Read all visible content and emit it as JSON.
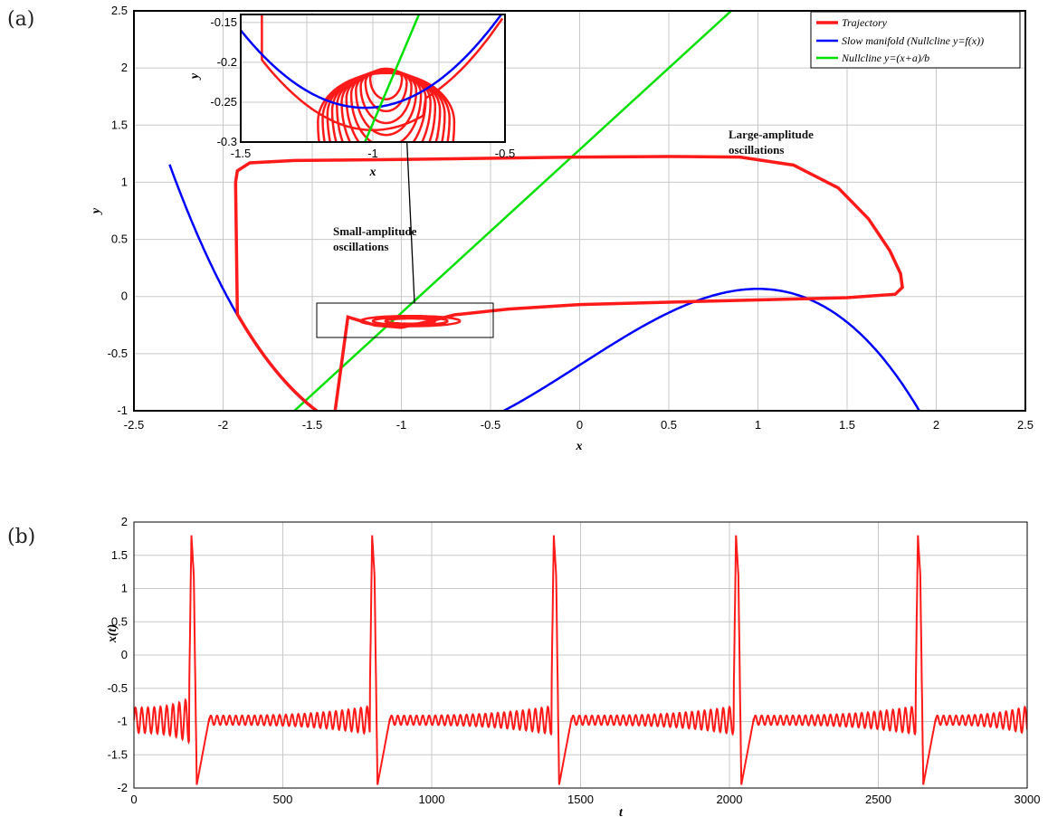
{
  "panel_labels": {
    "a": "(a)",
    "b": "(b)"
  },
  "colors": {
    "trajectory": "#ff1a1a",
    "manifold": "#0000ff",
    "nullcline": "#00e000",
    "grid": "#c8c8c8"
  },
  "chart_data": [
    {
      "id": "phase-plane",
      "type": "line",
      "xlabel": "x",
      "ylabel": "y",
      "xlim": [
        -2.5,
        2.5
      ],
      "ylim": [
        -1,
        2.5
      ],
      "xticks": [
        "-2.5",
        "-2",
        "-1.5",
        "-1",
        "-0.5",
        "0",
        "0.5",
        "1",
        "1.5",
        "2",
        "2.5"
      ],
      "yticks": [
        "-1",
        "-0.5",
        "0",
        "0.5",
        "1",
        "1.5",
        "2",
        "2.5"
      ],
      "grid": true,
      "legend_position": "top-right",
      "series": [
        {
          "name": "Trajectory",
          "color": "#ff1a1a",
          "description_points": [
            [
              -1.94,
              1.05
            ],
            [
              -1.7,
              1.18
            ],
            [
              0,
              1.22
            ],
            [
              0.9,
              1.22
            ],
            [
              1.5,
              0.95
            ],
            [
              1.8,
              0.2
            ],
            [
              1.75,
              0.01
            ],
            [
              0,
              -0.05
            ],
            [
              -0.7,
              -0.16
            ],
            [
              -1.0,
              -0.26
            ],
            [
              -1.4,
              -0.08
            ],
            [
              -1.8,
              0.5
            ],
            [
              -1.94,
              1.0
            ]
          ]
        },
        {
          "name": "Slow manifold (Nullcline y=f(x))",
          "color": "#0000ff",
          "function": "x - x^3/3 - 0.6",
          "x_range": [
            -2.3,
            2.22
          ]
        },
        {
          "name": "Nullcline y=(x+a)/b",
          "color": "#00e000",
          "function": "(x + 0.9)/0.7",
          "x_range": [
            -1.6,
            1.3
          ]
        }
      ],
      "annotations": {
        "large": [
          "Large-amplitude",
          "oscillations"
        ],
        "small": [
          "Small-amplitude",
          "oscillations"
        ]
      },
      "inset": {
        "xlabel": "x",
        "ylabel": "y",
        "xlim": [
          -1.5,
          -0.5
        ],
        "ylim": [
          -0.3,
          -0.14
        ],
        "xticks": [
          "-1.5",
          "-1",
          "-0.5"
        ],
        "yticks": [
          "-0.3",
          "-0.25",
          "-0.2",
          "-0.15"
        ]
      }
    },
    {
      "id": "time-series",
      "type": "line",
      "xlabel": "t",
      "ylabel": "x(t)",
      "xlim": [
        0,
        3000
      ],
      "ylim": [
        -2,
        2
      ],
      "xticks": [
        "0",
        "500",
        "1000",
        "1500",
        "2000",
        "2500",
        "3000"
      ],
      "yticks": [
        "-2",
        "-1.5",
        "-1",
        "-0.5",
        "0",
        "0.5",
        "1",
        "1.5",
        "2"
      ],
      "grid": true,
      "series": [
        {
          "name": "",
          "color": "#ff1a1a",
          "spike_times": [
            193,
            800,
            1410,
            2022,
            2633
          ],
          "spike_peak": 1.8,
          "spike_min": -1.95,
          "baseline": -0.98
        }
      ]
    }
  ]
}
